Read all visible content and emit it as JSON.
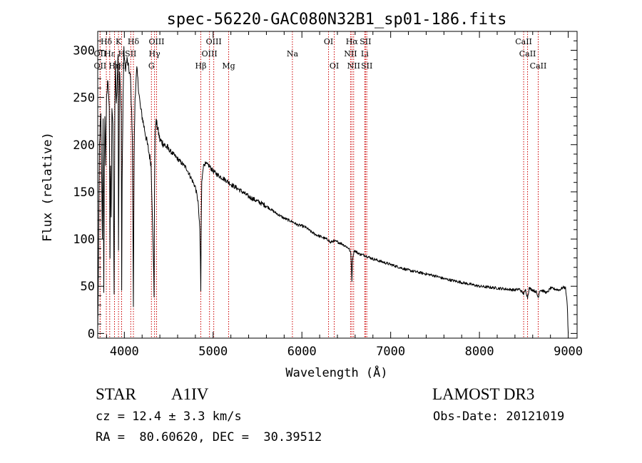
{
  "chart_data": {
    "type": "line",
    "title": "spec-56220-GAC080N32B1_sp01-186.fits",
    "xlabel": "Wavelength (Å)",
    "ylabel": "Flux (relative)",
    "xlim": [
      3700,
      9100
    ],
    "ylim": [
      -5,
      320
    ],
    "x_ticks": [
      4000,
      5000,
      6000,
      7000,
      8000,
      9000
    ],
    "x_tick_labels": [
      "4000",
      "5000",
      "6000",
      "7000",
      "8000",
      "9000"
    ],
    "y_ticks": [
      0,
      50,
      100,
      150,
      200,
      250,
      300
    ],
    "y_tick_labels": [
      "0",
      "50",
      "100",
      "150",
      "200",
      "250",
      "300"
    ],
    "series": [
      {
        "name": "spectrum",
        "x": [
          3700,
          3705,
          3712,
          3720,
          3728,
          3735,
          3745,
          3752,
          3760,
          3768,
          3775,
          3780,
          3790,
          3800,
          3815,
          3830,
          3838,
          3845,
          3852,
          3860,
          3870,
          3880,
          3885,
          3889,
          3893,
          3900,
          3910,
          3920,
          3930,
          3934,
          3938,
          3945,
          3955,
          3965,
          3970,
          3975,
          3985,
          3995,
          4010,
          4030,
          4050,
          4070,
          4090,
          4102,
          4110,
          4120,
          4140,
          4160,
          4180,
          4200,
          4220,
          4240,
          4260,
          4280,
          4300,
          4320,
          4335,
          4340,
          4345,
          4355,
          4370,
          4400,
          4450,
          4500,
          4550,
          4600,
          4650,
          4700,
          4750,
          4800,
          4830,
          4850,
          4856,
          4861,
          4866,
          4872,
          4885,
          4900,
          4950,
          5000,
          5050,
          5100,
          5150,
          5200,
          5300,
          5400,
          5500,
          5600,
          5700,
          5800,
          5900,
          5950,
          6000,
          6050,
          6100,
          6150,
          6200,
          6250,
          6300,
          6320,
          6350,
          6400,
          6450,
          6500,
          6530,
          6550,
          6558,
          6563,
          6568,
          6575,
          6590,
          6620,
          6650,
          6700,
          6750,
          6800,
          6900,
          7000,
          7100,
          7200,
          7300,
          7400,
          7500,
          7600,
          7700,
          7800,
          7900,
          8000,
          8100,
          8200,
          8300,
          8400,
          8450,
          8498,
          8520,
          8542,
          8560,
          8600,
          8640,
          8662,
          8680,
          8720,
          8760,
          8800,
          8850,
          8900,
          8930,
          8950,
          8970,
          8990,
          9000
        ],
        "values": [
          3,
          40,
          120,
          200,
          220,
          230,
          160,
          100,
          230,
          40,
          180,
          230,
          180,
          250,
          270,
          240,
          80,
          180,
          120,
          240,
          220,
          110,
          40,
          150,
          240,
          290,
          240,
          270,
          300,
          90,
          150,
          280,
          260,
          230,
          50,
          160,
          250,
          300,
          280,
          290,
          280,
          270,
          210,
          30,
          190,
          250,
          280,
          260,
          240,
          230,
          220,
          210,
          200,
          190,
          180,
          110,
          40,
          150,
          205,
          225,
          220,
          205,
          200,
          195,
          190,
          185,
          180,
          175,
          165,
          155,
          140,
          110,
          80,
          45,
          120,
          160,
          175,
          180,
          178,
          172,
          168,
          165,
          162,
          158,
          152,
          145,
          140,
          135,
          128,
          122,
          118,
          115,
          114,
          112,
          108,
          105,
          103,
          101,
          99,
          96,
          98,
          97,
          95,
          92,
          90,
          85,
          70,
          55,
          72,
          82,
          88,
          86,
          84,
          83,
          81,
          79,
          76,
          73,
          70,
          67,
          65,
          63,
          61,
          58,
          56,
          54,
          52,
          50,
          49,
          48,
          47,
          46,
          47,
          42,
          46,
          38,
          48,
          46,
          44,
          38,
          46,
          45,
          43,
          48,
          47,
          46,
          48,
          49,
          48,
          30,
          0
        ]
      }
    ],
    "line_markers": [
      {
        "label": "Hδ",
        "wavelength": 3797,
        "row": 1
      },
      {
        "label": "OII",
        "wavelength": 3727,
        "row": 2
      },
      {
        "label": "Hε",
        "wavelength": 3835,
        "row": 2
      },
      {
        "label": "OII",
        "wavelength": 3727,
        "row": 3
      },
      {
        "label": "Hη",
        "wavelength": 3889,
        "row": 3
      },
      {
        "label": "K",
        "wavelength": 3934,
        "row": 1
      },
      {
        "label": "H",
        "wavelength": 3969,
        "row": 2
      },
      {
        "label": "SII",
        "wavelength": 4072,
        "row": 2
      },
      {
        "label": "Hδ",
        "wavelength": 4102,
        "row": 1
      },
      {
        "label": "H",
        "wavelength": 3969,
        "row": 3
      },
      {
        "label": "OIII",
        "wavelength": 4363,
        "row": 1
      },
      {
        "label": "Hγ",
        "wavelength": 4340,
        "row": 2
      },
      {
        "label": "G",
        "wavelength": 4305,
        "row": 3
      },
      {
        "label": "OIII",
        "wavelength": 5007,
        "row": 1
      },
      {
        "label": "OIII",
        "wavelength": 4959,
        "row": 2
      },
      {
        "label": "Hβ",
        "wavelength": 4861,
        "row": 3
      },
      {
        "label": "Mg",
        "wavelength": 5175,
        "row": 3
      },
      {
        "label": "Na",
        "wavelength": 5893,
        "row": 2
      },
      {
        "label": "OI",
        "wavelength": 6300,
        "row": 1
      },
      {
        "label": "OI",
        "wavelength": 6364,
        "row": 3
      },
      {
        "label": "Hα",
        "wavelength": 6563,
        "row": 1
      },
      {
        "label": "SII",
        "wavelength": 6716,
        "row": 1
      },
      {
        "label": "NII",
        "wavelength": 6548,
        "row": 2
      },
      {
        "label": "Li",
        "wavelength": 6708,
        "row": 2
      },
      {
        "label": "NII",
        "wavelength": 6583,
        "row": 3
      },
      {
        "label": "SII",
        "wavelength": 6731,
        "row": 3
      },
      {
        "label": "CaII",
        "wavelength": 8498,
        "row": 1
      },
      {
        "label": "CaII",
        "wavelength": 8542,
        "row": 2
      },
      {
        "label": "CaII",
        "wavelength": 8662,
        "row": 3
      }
    ],
    "marker_color": "#cc0000"
  },
  "info": {
    "class_label": "STAR",
    "subclass": "A1IV",
    "survey": "LAMOST DR3",
    "redshift": "cz = 12.4 ± 3.3 km/s",
    "obs_date": "Obs-Date: 20121019",
    "coords": "RA =  80.60620, DEC =  30.39512"
  }
}
